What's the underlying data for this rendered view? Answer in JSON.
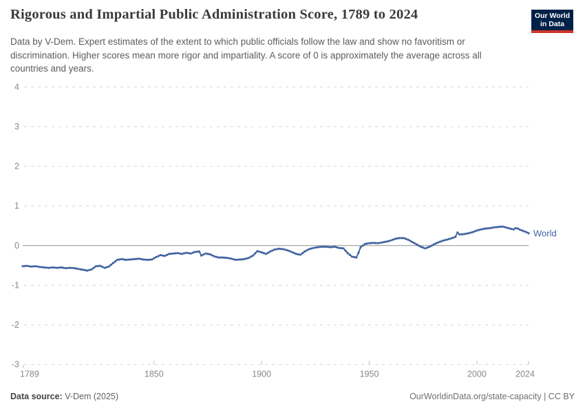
{
  "header": {
    "title": "Rigorous and Impartial Public Administration Score, 1789 to 2024",
    "subtitle": "Data by V-Dem. Expert estimates of the extent to which public officials follow the law and show no favoritism or discrimination. Higher scores mean more rigor and impartiality. A score of 0 is approximately the average across all countries and years.",
    "logo": {
      "line1": "Our World",
      "line2": "in Data",
      "bg_color": "#002147",
      "accent_color": "#cf3529"
    }
  },
  "chart_data": {
    "type": "line",
    "title": "Rigorous and Impartial Public Administration Score, 1789 to 2024",
    "xlabel": "",
    "ylabel": "",
    "xlim": [
      1789,
      2024
    ],
    "ylim": [
      -3,
      4
    ],
    "x_ticks": [
      1789,
      1850,
      1900,
      1950,
      2000,
      2024
    ],
    "y_ticks": [
      4,
      3,
      2,
      1,
      0,
      -1,
      -2,
      -3
    ],
    "grid": "horizontal-dashed",
    "zero_line": true,
    "legend_position": "end-of-line-label",
    "colors": {
      "grid": "#d6d6d6",
      "zero_line": "#8f8f8f",
      "tick_text": "#878787",
      "series": "#3f62a0"
    },
    "series": [
      {
        "name": "World",
        "color": "#3f62a0",
        "points": [
          [
            1789,
            -0.52
          ],
          [
            1791,
            -0.51
          ],
          [
            1793,
            -0.53
          ],
          [
            1795,
            -0.52
          ],
          [
            1797,
            -0.54
          ],
          [
            1799,
            -0.55
          ],
          [
            1801,
            -0.56
          ],
          [
            1803,
            -0.55
          ],
          [
            1805,
            -0.56
          ],
          [
            1807,
            -0.55
          ],
          [
            1809,
            -0.57
          ],
          [
            1811,
            -0.56
          ],
          [
            1813,
            -0.57
          ],
          [
            1815,
            -0.59
          ],
          [
            1817,
            -0.61
          ],
          [
            1819,
            -0.63
          ],
          [
            1821,
            -0.6
          ],
          [
            1823,
            -0.52
          ],
          [
            1825,
            -0.51
          ],
          [
            1827,
            -0.56
          ],
          [
            1829,
            -0.53
          ],
          [
            1831,
            -0.44
          ],
          [
            1833,
            -0.36
          ],
          [
            1835,
            -0.34
          ],
          [
            1837,
            -0.36
          ],
          [
            1839,
            -0.35
          ],
          [
            1841,
            -0.34
          ],
          [
            1843,
            -0.33
          ],
          [
            1845,
            -0.35
          ],
          [
            1847,
            -0.36
          ],
          [
            1849,
            -0.35
          ],
          [
            1851,
            -0.29
          ],
          [
            1853,
            -0.24
          ],
          [
            1855,
            -0.26
          ],
          [
            1857,
            -0.21
          ],
          [
            1859,
            -0.2
          ],
          [
            1861,
            -0.19
          ],
          [
            1863,
            -0.21
          ],
          [
            1865,
            -0.18
          ],
          [
            1867,
            -0.2
          ],
          [
            1869,
            -0.16
          ],
          [
            1871,
            -0.15
          ],
          [
            1872,
            -0.25
          ],
          [
            1874,
            -0.2
          ],
          [
            1876,
            -0.22
          ],
          [
            1878,
            -0.27
          ],
          [
            1880,
            -0.3
          ],
          [
            1882,
            -0.3
          ],
          [
            1884,
            -0.31
          ],
          [
            1886,
            -0.33
          ],
          [
            1888,
            -0.36
          ],
          [
            1890,
            -0.35
          ],
          [
            1892,
            -0.34
          ],
          [
            1894,
            -0.31
          ],
          [
            1896,
            -0.25
          ],
          [
            1898,
            -0.14
          ],
          [
            1900,
            -0.17
          ],
          [
            1902,
            -0.21
          ],
          [
            1904,
            -0.15
          ],
          [
            1906,
            -0.1
          ],
          [
            1908,
            -0.08
          ],
          [
            1910,
            -0.09
          ],
          [
            1912,
            -0.12
          ],
          [
            1914,
            -0.16
          ],
          [
            1916,
            -0.21
          ],
          [
            1918,
            -0.23
          ],
          [
            1920,
            -0.15
          ],
          [
            1922,
            -0.09
          ],
          [
            1924,
            -0.06
          ],
          [
            1926,
            -0.04
          ],
          [
            1928,
            -0.03
          ],
          [
            1930,
            -0.03
          ],
          [
            1932,
            -0.04
          ],
          [
            1934,
            -0.03
          ],
          [
            1936,
            -0.06
          ],
          [
            1938,
            -0.07
          ],
          [
            1940,
            -0.19
          ],
          [
            1942,
            -0.28
          ],
          [
            1944,
            -0.3
          ],
          [
            1945,
            -0.18
          ],
          [
            1946,
            -0.04
          ],
          [
            1948,
            0.04
          ],
          [
            1950,
            0.06
          ],
          [
            1952,
            0.07
          ],
          [
            1954,
            0.06
          ],
          [
            1956,
            0.08
          ],
          [
            1958,
            0.1
          ],
          [
            1960,
            0.13
          ],
          [
            1962,
            0.17
          ],
          [
            1964,
            0.19
          ],
          [
            1966,
            0.19
          ],
          [
            1968,
            0.15
          ],
          [
            1970,
            0.09
          ],
          [
            1972,
            0.03
          ],
          [
            1974,
            -0.03
          ],
          [
            1976,
            -0.07
          ],
          [
            1978,
            -0.03
          ],
          [
            1980,
            0.03
          ],
          [
            1982,
            0.08
          ],
          [
            1984,
            0.12
          ],
          [
            1986,
            0.15
          ],
          [
            1988,
            0.18
          ],
          [
            1990,
            0.22
          ],
          [
            1991,
            0.33
          ],
          [
            1992,
            0.28
          ],
          [
            1994,
            0.29
          ],
          [
            1996,
            0.31
          ],
          [
            1998,
            0.34
          ],
          [
            2000,
            0.38
          ],
          [
            2002,
            0.41
          ],
          [
            2004,
            0.43
          ],
          [
            2006,
            0.44
          ],
          [
            2008,
            0.46
          ],
          [
            2010,
            0.47
          ],
          [
            2012,
            0.48
          ],
          [
            2014,
            0.45
          ],
          [
            2016,
            0.42
          ],
          [
            2017,
            0.41
          ],
          [
            2018,
            0.44
          ],
          [
            2019,
            0.43
          ],
          [
            2020,
            0.4
          ],
          [
            2021,
            0.38
          ],
          [
            2022,
            0.36
          ],
          [
            2023,
            0.34
          ],
          [
            2024,
            0.31
          ]
        ]
      }
    ]
  },
  "footer": {
    "source_label": "Data source:",
    "source_value": " V-Dem (2025)",
    "credit": "OurWorldinData.org/state-capacity | CC BY"
  }
}
